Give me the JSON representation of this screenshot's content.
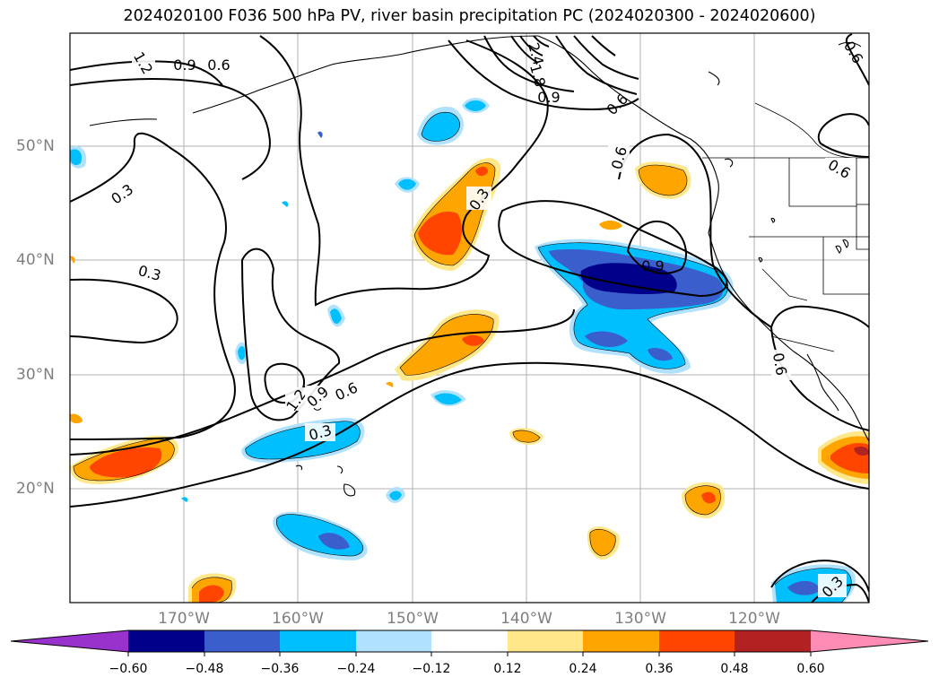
{
  "title": "2024020100 F036 500 hPa PV, river basin precipitation PC (2024020300 - 2024020600)",
  "map": {
    "lon_labels": [
      "170°W",
      "160°W",
      "150°W",
      "140°W",
      "130°W",
      "120°W"
    ],
    "lat_labels": [
      "50°N",
      "40°N",
      "30°N",
      "20°N"
    ],
    "contour_labels": [
      "1.2",
      "0.9",
      "0.6",
      "0.3",
      "0.3",
      "2.4",
      "1.8",
      "0.9",
      "0.6",
      "0.6",
      "0.3",
      "0.9",
      "1.2",
      "0.9",
      "0.6",
      "0.3",
      "0.6",
      "0.6",
      "0.3",
      "0.6"
    ]
  },
  "colorbar": {
    "ticks": [
      "−0.60",
      "−0.48",
      "−0.36",
      "−0.24",
      "−0.12",
      "0.12",
      "0.24",
      "0.36",
      "0.48",
      "0.60"
    ],
    "colors": [
      "#9932cc",
      "#00008b",
      "#3a5fcd",
      "#00bfff",
      "#b0e2ff",
      "#ffffff",
      "#ffe78a",
      "#ffa500",
      "#ff4500",
      "#b22222",
      "#ff8cb4"
    ]
  }
}
